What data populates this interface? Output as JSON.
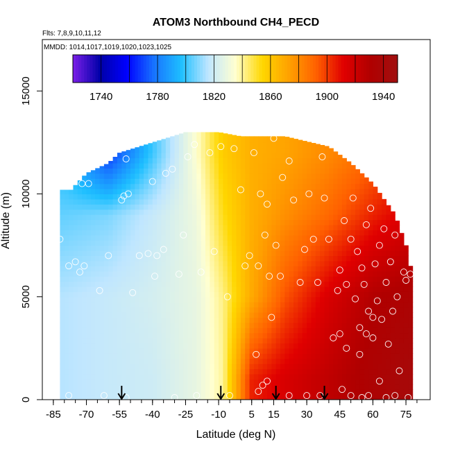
{
  "chart_data": {
    "type": "heatmap",
    "title": "ATOM3 Northbound CH4_PECD",
    "flights_note": "Flts: 7,8,9,10,11,12",
    "dates_note": "MMDD: 1014,1017,1019,1020,1023,1025",
    "xlabel": "Latitude (deg N)",
    "ylabel": "Altitude (m)",
    "xlim": [
      -90,
      86
    ],
    "ylim": [
      0,
      17500
    ],
    "x_ticks": [
      -85,
      -70,
      -55,
      -40,
      -25,
      -10,
      5,
      15,
      30,
      45,
      60,
      75
    ],
    "y_ticks": [
      0,
      5000,
      10000,
      15000
    ],
    "colorbar": {
      "min": 1720,
      "max": 1950,
      "tick_values": [
        1740,
        1780,
        1820,
        1860,
        1900,
        1940
      ],
      "colors": [
        "#7b1fe8",
        "#0000a8",
        "#0000ff",
        "#1874ff",
        "#1ebfff",
        "#bfe6ff",
        "#ffffd0",
        "#ffd700",
        "#ffa000",
        "#ff6000",
        "#e00000",
        "#b00000",
        "#a01010"
      ]
    },
    "profile_markers_lat": [
      -54,
      -9,
      16,
      38
    ],
    "grid": false,
    "legend": "none",
    "top_altitude_by_lat": [
      {
        "lat": -77,
        "alt": 10200
      },
      {
        "lat": -70,
        "alt": 11000
      },
      {
        "lat": -60,
        "alt": 11500
      },
      {
        "lat": -55,
        "alt": 12000
      },
      {
        "lat": -40,
        "alt": 12500
      },
      {
        "lat": -25,
        "alt": 13000
      },
      {
        "lat": -10,
        "alt": 13000
      },
      {
        "lat": 0,
        "alt": 12800
      },
      {
        "lat": 20,
        "alt": 12800
      },
      {
        "lat": 40,
        "alt": 12300
      },
      {
        "lat": 50,
        "alt": 11500
      },
      {
        "lat": 60,
        "alt": 10500
      },
      {
        "lat": 70,
        "alt": 9000
      },
      {
        "lat": 75,
        "alt": 7500
      },
      {
        "lat": 78,
        "alt": 6000
      }
    ],
    "field_anchors": [
      {
        "lat": -80,
        "c1000": 1815,
        "c5000": 1815,
        "c9000": 1805,
        "c12000": 1795
      },
      {
        "lat": -60,
        "c1000": 1818,
        "c5000": 1818,
        "c9000": 1808,
        "c12000": 1765
      },
      {
        "lat": -40,
        "c1000": 1820,
        "c5000": 1822,
        "c9000": 1818,
        "c12000": 1800
      },
      {
        "lat": -20,
        "c1000": 1828,
        "c5000": 1828,
        "c9000": 1830,
        "c12000": 1835
      },
      {
        "lat": -8,
        "c1000": 1840,
        "c5000": 1842,
        "c9000": 1852,
        "c12000": 1858
      },
      {
        "lat": 5,
        "c1000": 1905,
        "c5000": 1870,
        "c9000": 1868,
        "c12000": 1868
      },
      {
        "lat": 20,
        "c1000": 1915,
        "c5000": 1895,
        "c9000": 1878,
        "c12000": 1872
      },
      {
        "lat": 40,
        "c1000": 1925,
        "c5000": 1915,
        "c9000": 1890,
        "c12000": 1880
      },
      {
        "lat": 60,
        "c1000": 1935,
        "c5000": 1930,
        "c9000": 1905,
        "c12000": 1890
      },
      {
        "lat": 78,
        "c1000": 1942,
        "c5000": 1935,
        "c9000": 1915,
        "c12000": 1900
      }
    ],
    "observation_points": [
      {
        "lat": -82,
        "alt": 7800
      },
      {
        "lat": -78,
        "alt": 6500
      },
      {
        "lat": -75,
        "alt": 6700
      },
      {
        "lat": -73,
        "alt": 6200
      },
      {
        "lat": -71,
        "alt": 6500
      },
      {
        "lat": -72,
        "alt": 10500
      },
      {
        "lat": -69,
        "alt": 10500
      },
      {
        "lat": -64,
        "alt": 5300
      },
      {
        "lat": -60,
        "alt": 7000
      },
      {
        "lat": -54,
        "alt": 9700
      },
      {
        "lat": -53,
        "alt": 9900
      },
      {
        "lat": -51,
        "alt": 10000
      },
      {
        "lat": -52,
        "alt": 11700
      },
      {
        "lat": -49,
        "alt": 5200
      },
      {
        "lat": -46,
        "alt": 7000
      },
      {
        "lat": -42,
        "alt": 7100
      },
      {
        "lat": -39,
        "alt": 6000
      },
      {
        "lat": -40,
        "alt": 10600
      },
      {
        "lat": -38,
        "alt": 7000
      },
      {
        "lat": -35,
        "alt": 7300
      },
      {
        "lat": -34,
        "alt": 11000
      },
      {
        "lat": -31,
        "alt": 11200
      },
      {
        "lat": -28,
        "alt": 6100
      },
      {
        "lat": -26,
        "alt": 8000
      },
      {
        "lat": -24,
        "alt": 11800
      },
      {
        "lat": -21,
        "alt": 12400
      },
      {
        "lat": -18,
        "alt": 6200
      },
      {
        "lat": -14,
        "alt": 12000
      },
      {
        "lat": -12,
        "alt": 7200
      },
      {
        "lat": -9,
        "alt": 12300
      },
      {
        "lat": -6,
        "alt": 5000
      },
      {
        "lat": -3,
        "alt": 12200
      },
      {
        "lat": 0,
        "alt": 10200
      },
      {
        "lat": 2,
        "alt": 6500
      },
      {
        "lat": 4,
        "alt": 7000
      },
      {
        "lat": 6,
        "alt": 12000
      },
      {
        "lat": 7,
        "alt": 2200
      },
      {
        "lat": 8,
        "alt": 6500
      },
      {
        "lat": 9,
        "alt": 10000
      },
      {
        "lat": 10,
        "alt": 700
      },
      {
        "lat": 11,
        "alt": 8000
      },
      {
        "lat": 12,
        "alt": 9500
      },
      {
        "lat": 13,
        "alt": 6000
      },
      {
        "lat": 14,
        "alt": 4000
      },
      {
        "lat": 15,
        "alt": 12700
      },
      {
        "lat": 16,
        "alt": 7500
      },
      {
        "lat": 18,
        "alt": 6000
      },
      {
        "lat": 19,
        "alt": 10800
      },
      {
        "lat": 22,
        "alt": 11600
      },
      {
        "lat": 24,
        "alt": 9700
      },
      {
        "lat": 27,
        "alt": 5700
      },
      {
        "lat": 29,
        "alt": 7300
      },
      {
        "lat": 31,
        "alt": 10000
      },
      {
        "lat": 33,
        "alt": 7800
      },
      {
        "lat": 35,
        "alt": 5700
      },
      {
        "lat": 37,
        "alt": 11800
      },
      {
        "lat": 38,
        "alt": 9800
      },
      {
        "lat": 40,
        "alt": 7800
      },
      {
        "lat": 42,
        "alt": 3000
      },
      {
        "lat": 44,
        "alt": 5300
      },
      {
        "lat": 45,
        "alt": 6300
      },
      {
        "lat": 47,
        "alt": 8700
      },
      {
        "lat": 48,
        "alt": 2500
      },
      {
        "lat": 50,
        "alt": 7800
      },
      {
        "lat": 51,
        "alt": 9800
      },
      {
        "lat": 52,
        "alt": 4900
      },
      {
        "lat": 53,
        "alt": 7200
      },
      {
        "lat": 54,
        "alt": 3500
      },
      {
        "lat": 55,
        "alt": 6400
      },
      {
        "lat": 56,
        "alt": 5600
      },
      {
        "lat": 57,
        "alt": 8500
      },
      {
        "lat": 58,
        "alt": 4300
      },
      {
        "lat": 59,
        "alt": 9300
      },
      {
        "lat": 60,
        "alt": 3000
      },
      {
        "lat": 61,
        "alt": 6600
      },
      {
        "lat": 62,
        "alt": 4800
      },
      {
        "lat": 63,
        "alt": 7500
      },
      {
        "lat": 64,
        "alt": 3900
      },
      {
        "lat": 65,
        "alt": 8300
      },
      {
        "lat": 66,
        "alt": 5700
      },
      {
        "lat": 67,
        "alt": 2700
      },
      {
        "lat": 68,
        "alt": 6700
      },
      {
        "lat": 69,
        "alt": 4300
      },
      {
        "lat": 70,
        "alt": 8000
      },
      {
        "lat": 71,
        "alt": 5000
      },
      {
        "lat": 72,
        "alt": 1400
      },
      {
        "lat": 74,
        "alt": 6200
      },
      {
        "lat": 75,
        "alt": 5800
      },
      {
        "lat": 76,
        "alt": 8300
      },
      {
        "lat": 77,
        "alt": 6100
      },
      {
        "lat": -78,
        "alt": 200
      },
      {
        "lat": -62,
        "alt": 200
      },
      {
        "lat": -52,
        "alt": 100
      },
      {
        "lat": -30,
        "alt": 100
      },
      {
        "lat": -20,
        "alt": 200
      },
      {
        "lat": -5,
        "alt": 200
      },
      {
        "lat": 8,
        "alt": 400
      },
      {
        "lat": 12,
        "alt": 900
      },
      {
        "lat": 22,
        "alt": 200
      },
      {
        "lat": 30,
        "alt": 200
      },
      {
        "lat": 36,
        "alt": 200
      },
      {
        "lat": 46,
        "alt": 500
      },
      {
        "lat": 50,
        "alt": 200
      },
      {
        "lat": 55,
        "alt": 100
      },
      {
        "lat": 58,
        "alt": 200
      },
      {
        "lat": 63,
        "alt": 900
      },
      {
        "lat": 66,
        "alt": 100
      },
      {
        "lat": 70,
        "alt": 200
      },
      {
        "lat": 76,
        "alt": 100
      },
      {
        "lat": 45,
        "alt": 3200
      },
      {
        "lat": 57,
        "alt": 3200
      },
      {
        "lat": 60,
        "alt": 4000
      },
      {
        "lat": 54,
        "alt": 2200
      },
      {
        "lat": 48,
        "alt": 5600
      }
    ]
  }
}
